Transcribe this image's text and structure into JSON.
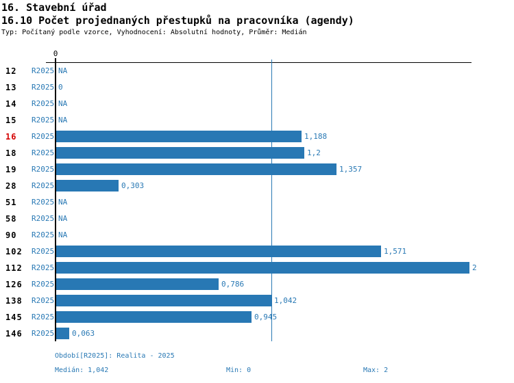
{
  "header": {
    "title_line1": "16. Stavební úřad",
    "title_line2": "16.10 Počet projednaných přestupků na pracovníka (agendy)",
    "subtitle": "Typ: Počítaný podle vzorce, Vyhodnocení: Absolutní hodnoty, Průměr: Medián"
  },
  "chart_data": {
    "type": "bar",
    "orientation": "horizontal",
    "title": "16.10 Počet projednaných přestupků na pracovníka (agendy)",
    "xlabel": "",
    "ylabel": "",
    "xlim": [
      0,
      2
    ],
    "axis_top_tick_label": "0",
    "series_label": "R2025",
    "highlighted_category": "16",
    "median": 1.042,
    "grid": "single median reference line",
    "legend_position": "none",
    "categories": [
      "12",
      "13",
      "14",
      "15",
      "16",
      "18",
      "19",
      "28",
      "51",
      "58",
      "90",
      "102",
      "112",
      "126",
      "138",
      "145",
      "146"
    ],
    "rows": [
      {
        "id": "12",
        "period": "R2025",
        "value": null,
        "label": "NA"
      },
      {
        "id": "13",
        "period": "R2025",
        "value": 0,
        "label": "0"
      },
      {
        "id": "14",
        "period": "R2025",
        "value": null,
        "label": "NA"
      },
      {
        "id": "15",
        "period": "R2025",
        "value": null,
        "label": "NA"
      },
      {
        "id": "16",
        "period": "R2025",
        "value": 1.188,
        "label": "1,188"
      },
      {
        "id": "18",
        "period": "R2025",
        "value": 1.2,
        "label": "1,2"
      },
      {
        "id": "19",
        "period": "R2025",
        "value": 1.357,
        "label": "1,357"
      },
      {
        "id": "28",
        "period": "R2025",
        "value": 0.303,
        "label": "0,303"
      },
      {
        "id": "51",
        "period": "R2025",
        "value": null,
        "label": "NA"
      },
      {
        "id": "58",
        "period": "R2025",
        "value": null,
        "label": "NA"
      },
      {
        "id": "90",
        "period": "R2025",
        "value": null,
        "label": "NA"
      },
      {
        "id": "102",
        "period": "R2025",
        "value": 1.571,
        "label": "1,571"
      },
      {
        "id": "112",
        "period": "R2025",
        "value": 2,
        "label": "2"
      },
      {
        "id": "126",
        "period": "R2025",
        "value": 0.786,
        "label": "0,786"
      },
      {
        "id": "138",
        "period": "R2025",
        "value": 1.042,
        "label": "1,042"
      },
      {
        "id": "145",
        "period": "R2025",
        "value": 0.945,
        "label": "0,945"
      },
      {
        "id": "146",
        "period": "R2025",
        "value": 0.063,
        "label": "0,063"
      }
    ],
    "colors": {
      "bar": "#2878b4",
      "blue_text": "#2878b4",
      "highlight_row": "#d40000",
      "axis": "#000000"
    }
  },
  "footer": {
    "period_line": "Období[R2025]: Realita - 2025",
    "median_label": "Medián: 1,042",
    "min_label": "Min: 0",
    "max_label": "Max: 2"
  }
}
